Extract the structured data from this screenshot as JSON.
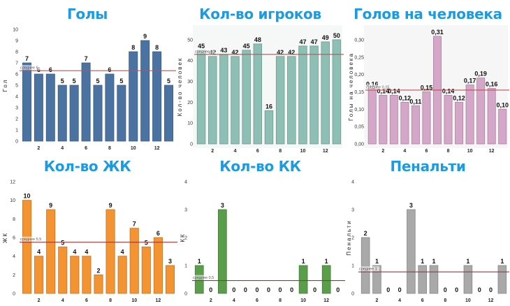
{
  "chart_data": [
    {
      "type": "bar",
      "title": "Голы",
      "xlabel": "",
      "ylabel": "Гол",
      "categories": [
        1,
        2,
        3,
        4,
        5,
        6,
        7,
        8,
        9,
        10,
        11,
        12,
        13
      ],
      "x_tick_labels": [
        "2",
        "4",
        "6",
        "8",
        "10",
        "12"
      ],
      "values": [
        7,
        6,
        6,
        5,
        5,
        7,
        5,
        6,
        5,
        8,
        9,
        8,
        5
      ],
      "value_labels": [
        "7",
        "6",
        "6",
        "5",
        "5",
        "7",
        "5",
        "6",
        "5",
        "8",
        "9",
        "8",
        "5"
      ],
      "y_ticks": [
        0,
        1,
        2,
        3,
        4,
        5,
        6,
        7,
        8,
        9,
        10
      ],
      "y_tick_labels": [
        "0",
        "1",
        "2",
        "3",
        "4",
        "5",
        "6",
        "7",
        "8",
        "9",
        "10"
      ],
      "ylim": [
        0,
        10
      ],
      "mean": 6.3,
      "mean_label": "среднее 6",
      "bar_color": "#4a73a2",
      "mean_color": "#c0504d",
      "grid": false
    },
    {
      "type": "bar",
      "title": "Кол-во игроков",
      "xlabel": "",
      "ylabel": "Кол-во человек",
      "categories": [
        1,
        2,
        3,
        4,
        5,
        6,
        7,
        8,
        9,
        10,
        11,
        12,
        13
      ],
      "x_tick_labels": [
        "2",
        "4",
        "6",
        "8",
        "10",
        "12"
      ],
      "values": [
        45,
        42,
        43,
        42,
        45,
        48,
        16,
        42,
        42,
        47,
        47,
        49,
        50
      ],
      "value_labels": [
        "45",
        "42",
        "43",
        "42",
        "45",
        "48",
        "16",
        "42",
        "42",
        "47",
        "47",
        "49",
        "50"
      ],
      "y_ticks": [
        0,
        10,
        20,
        30,
        40,
        50
      ],
      "y_tick_labels": [
        "0",
        "10",
        "20",
        "30",
        "40",
        "50"
      ],
      "ylim": [
        0,
        55
      ],
      "mean": 43,
      "mean_label": "среднее 43",
      "bar_color": "#8dbfb4",
      "mean_color": "#c0504d",
      "grid": false
    },
    {
      "type": "bar",
      "title": "Голов на человека",
      "xlabel": "",
      "ylabel": "Голы на человека",
      "categories": [
        1,
        2,
        3,
        4,
        5,
        6,
        7,
        8,
        9,
        10,
        11,
        12,
        13
      ],
      "x_tick_labels": [
        "2",
        "4",
        "6",
        "8",
        "10",
        "12"
      ],
      "values": [
        0.16,
        0.14,
        0.14,
        0.12,
        0.11,
        0.15,
        0.31,
        0.14,
        0.12,
        0.17,
        0.19,
        0.16,
        0.1
      ],
      "value_labels": [
        "0,16",
        "0,14",
        "0,14",
        "0,12",
        "0,11",
        "0,15",
        "0,31",
        "0,14",
        "0,12",
        "0,17",
        "0,19",
        "0,16",
        "0,10"
      ],
      "y_ticks": [
        0,
        0.05,
        0.1,
        0.15,
        0.2,
        0.25,
        0.3
      ],
      "y_tick_labels": [
        "0,00",
        "0,05",
        "0,10",
        "0,15",
        "0,20",
        "0,25",
        "0,30"
      ],
      "ylim": [
        0,
        0.33
      ],
      "mean": 0.155,
      "mean_label": "среднее 0,15",
      "bar_color": "#d4a6c8",
      "mean_color": "#c0504d",
      "grid": false
    },
    {
      "type": "bar",
      "title": "Кол-во ЖК",
      "xlabel": "",
      "ylabel": "ЖК",
      "categories": [
        1,
        2,
        3,
        4,
        5,
        6,
        7,
        8,
        9,
        10,
        11,
        12,
        13
      ],
      "x_tick_labels": [
        "2",
        "4",
        "6",
        "8",
        "10",
        "12"
      ],
      "values": [
        10,
        4,
        9,
        5,
        4,
        4,
        2,
        9,
        4,
        7,
        5,
        6,
        3
      ],
      "value_labels": [
        "10",
        "4",
        "9",
        "5",
        "4",
        "4",
        "2",
        "9",
        "4",
        "7",
        "5",
        "6",
        "3"
      ],
      "y_ticks": [
        0,
        2,
        4,
        6,
        8,
        10,
        12
      ],
      "y_tick_labels": [
        "0",
        "2",
        "4",
        "6",
        "8",
        "10",
        "12"
      ],
      "ylim": [
        0,
        12
      ],
      "mean": 5.5,
      "mean_label": "среднее 5,5",
      "bar_color": "#f39331",
      "mean_color": "#a0352f",
      "grid": false
    },
    {
      "type": "bar",
      "title": "Кол-во КК",
      "xlabel": "",
      "ylabel": "КК",
      "categories": [
        1,
        2,
        3,
        4,
        5,
        6,
        7,
        8,
        9,
        10,
        11,
        12,
        13
      ],
      "x_tick_labels": [
        "2",
        "4",
        "6",
        "8",
        "10",
        "12"
      ],
      "values": [
        1,
        0,
        3,
        0,
        0,
        0,
        0,
        0,
        0,
        1,
        0,
        1,
        0
      ],
      "value_labels": [
        "1",
        "0",
        "3",
        "0",
        "0",
        "0",
        "0",
        "0",
        "0",
        "1",
        "0",
        "1",
        "0"
      ],
      "y_ticks": [
        0,
        1,
        2,
        3,
        4
      ],
      "y_tick_labels": [
        "0",
        "1",
        "2",
        "3",
        "4"
      ],
      "ylim": [
        0,
        4
      ],
      "mean": 0.46,
      "mean_label": "среднее 0,5",
      "bar_color": "#5a9e4b",
      "mean_color": "#a0352f",
      "grid": false
    },
    {
      "type": "bar",
      "title": "Пенальти",
      "xlabel": "",
      "ylabel": "Пенальти",
      "categories": [
        1,
        2,
        3,
        4,
        5,
        6,
        7,
        8,
        9,
        10,
        11,
        12,
        13
      ],
      "x_tick_labels": [
        "2",
        "4",
        "6",
        "8",
        "10",
        "12"
      ],
      "values": [
        2,
        1,
        0,
        0,
        3,
        1,
        1,
        0,
        0,
        1,
        0,
        0,
        1
      ],
      "value_labels": [
        "2",
        "1",
        "0",
        "0",
        "3",
        "1",
        "1",
        "0",
        "0",
        "1",
        "0",
        "0",
        "1"
      ],
      "y_ticks": [
        0,
        1,
        2,
        3,
        4
      ],
      "y_tick_labels": [
        "0",
        "1",
        "2",
        "3",
        "4"
      ],
      "ylim": [
        0,
        4
      ],
      "mean": 0.77,
      "mean_label": "среднее 1",
      "bar_color": "#a9a9a9",
      "mean_color": "#a0352f",
      "grid": false
    }
  ]
}
